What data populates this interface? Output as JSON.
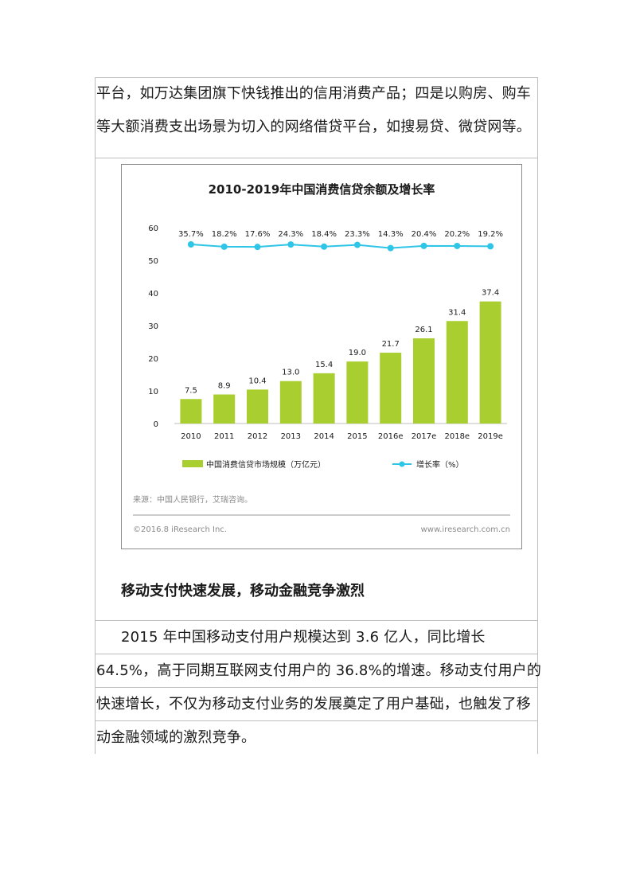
{
  "paragraph1": {
    "lines": [
      "平台，如万达集团旗下快钱推出的信用消费产品；四是以购房、购车",
      "等大额消费支出场景为切入的网络借贷平台，如搜易贷、微贷网等。"
    ]
  },
  "section_heading": "移动支付快速发展，移动金融竞争激烈",
  "paragraph2": {
    "lines": [
      "2015 年中国移动支付用户规模达到 3.6 亿人，同比增长",
      "64.5%，高于同期互联网支付用户的 36.8%的增速。移动支付用户的",
      "快速增长，不仅为移动支付业务的发展奠定了用户基础，也触发了移",
      "动金融领域的激烈竞争。"
    ]
  },
  "chart_data": {
    "type": "bar",
    "title": "2010-2019年中国消费信贷余额及增长率",
    "categories": [
      "2010",
      "2011",
      "2012",
      "2013",
      "2014",
      "2015",
      "2016e",
      "2017e",
      "2018e",
      "2019e"
    ],
    "series": [
      {
        "name": "中国消费信贷市场规模（万亿元）",
        "type": "bar",
        "values": [
          7.5,
          8.9,
          10.4,
          13.0,
          15.4,
          19.0,
          21.7,
          26.1,
          31.4,
          37.4
        ],
        "value_labels": [
          "7.5",
          "8.9",
          "10.4",
          "13.0",
          "15.4",
          "19.0",
          "21.7",
          "26.1",
          "31.4",
          "37.4"
        ]
      },
      {
        "name": "增长率（%）",
        "type": "line",
        "values": [
          35.7,
          18.2,
          17.6,
          24.3,
          18.4,
          23.3,
          14.3,
          20.4,
          20.2,
          19.2
        ],
        "value_labels": [
          "35.7%",
          "18.2%",
          "17.6%",
          "24.3%",
          "18.4%",
          "23.3%",
          "14.3%",
          "20.4%",
          "20.2%",
          "19.2%"
        ]
      }
    ],
    "yticks": [
      "0",
      "10",
      "20",
      "30",
      "40",
      "50",
      "60"
    ],
    "ylim": [
      0,
      60
    ],
    "legend_position": "bottom",
    "source": "来源：中国人民银行，艾瑞咨询。",
    "copyright": "©2016.8 iResearch Inc.",
    "website": "www.iresearch.com.cn",
    "colors": {
      "bar": "#a8cf2f",
      "line": "#2ec5e6"
    }
  }
}
